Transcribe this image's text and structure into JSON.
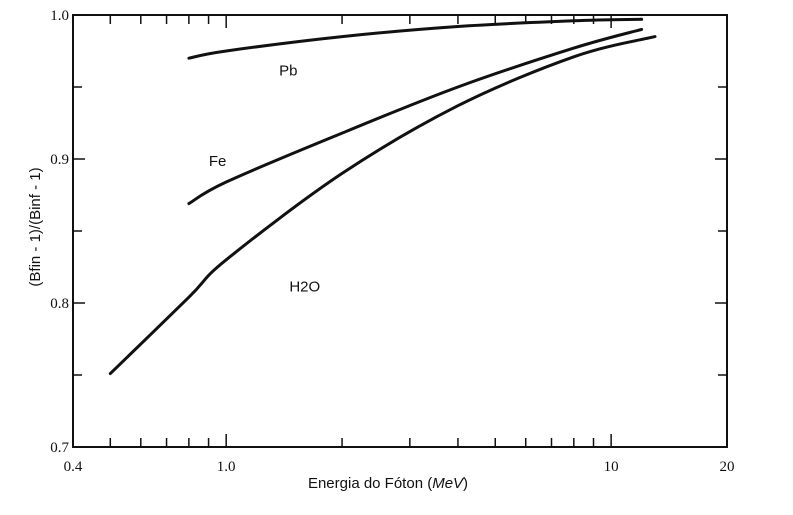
{
  "chart_data": {
    "type": "line",
    "title": "",
    "xlabel": {
      "prefix": "Energia do Fóton (",
      "unit": "MeV",
      "suffix": ")"
    },
    "ylabel": "(Bfin - 1)/(Binf - 1)",
    "x_scale": "log",
    "xlim": [
      0.4,
      20
    ],
    "ylim": [
      0.7,
      1.0
    ],
    "x_tick_labels": [
      {
        "value": 0.4,
        "label": "0.4"
      },
      {
        "value": 1.0,
        "label": "1.0"
      },
      {
        "value": 10,
        "label": "10"
      },
      {
        "value": 20,
        "label": "20"
      }
    ],
    "y_tick_labels": [
      {
        "value": 0.7,
        "label": "0.7"
      },
      {
        "value": 0.8,
        "label": "0.8"
      },
      {
        "value": 0.9,
        "label": "0.9"
      },
      {
        "value": 1.0,
        "label": "1.0"
      }
    ],
    "grid": false,
    "series": [
      {
        "name": "Pb",
        "x": [
          0.8,
          1.0,
          2.0,
          4.0,
          8.0,
          12.0
        ],
        "y": [
          0.97,
          0.975,
          0.985,
          0.992,
          0.996,
          0.997
        ]
      },
      {
        "name": "Fe",
        "x": [
          0.8,
          1.0,
          2.0,
          4.0,
          8.0,
          12.0
        ],
        "y": [
          0.869,
          0.884,
          0.918,
          0.95,
          0.977,
          0.99
        ]
      },
      {
        "name": "H2O",
        "x": [
          0.5,
          0.8,
          1.0,
          2.0,
          4.0,
          8.0,
          13.0
        ],
        "y": [
          0.751,
          0.804,
          0.83,
          0.89,
          0.937,
          0.971,
          0.985
        ]
      }
    ]
  }
}
